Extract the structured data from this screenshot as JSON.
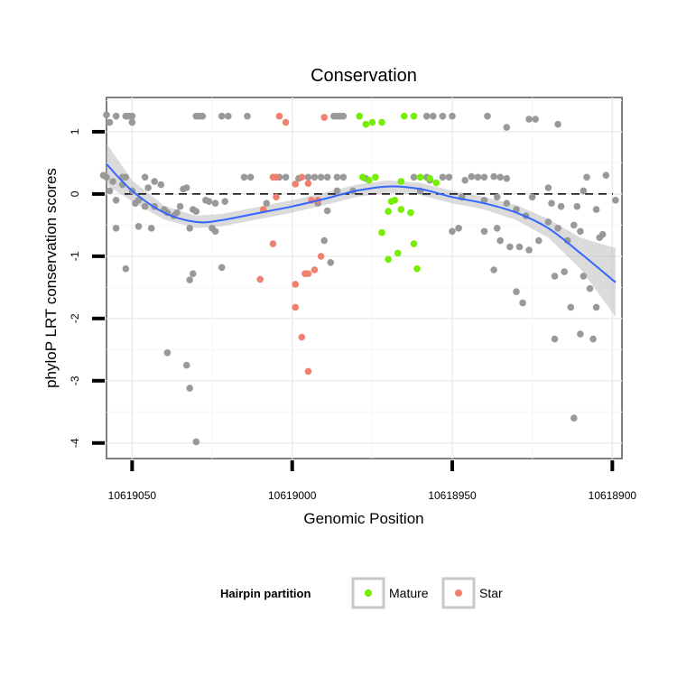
{
  "chart_data": {
    "type": "scatter",
    "title": "Conservation",
    "xlabel": "Genomic Position",
    "ylabel": "phyloP LRT conservation scores",
    "x_reversed": true,
    "xlim": [
      10619058,
      10618897
    ],
    "ylim": [
      -4.25,
      1.55
    ],
    "x_ticks": [
      10619050,
      10619000,
      10618950,
      10618900
    ],
    "x_tick_labels": [
      "10619050",
      "10619000",
      "10618950",
      "10618900"
    ],
    "y_ticks": [
      -4,
      -3,
      -2,
      -1,
      0,
      1
    ],
    "y_tick_labels": [
      "-4",
      "-3",
      "-2",
      "-1",
      "0",
      "1"
    ],
    "grid": true,
    "reference_line": {
      "y": 0,
      "style": "dashed",
      "color": "#000000"
    },
    "legend": {
      "title": "Hairpin partition",
      "placement": "bottom",
      "entries": [
        {
          "label": "Mature",
          "color": "#76EE00"
        },
        {
          "label": "Star",
          "color": "#F08070"
        }
      ]
    },
    "colors": {
      "other": "#999999",
      "mature": "#76EE00",
      "star": "#F08070",
      "smooth_line": "#3366FF",
      "ribbon": "#BEBEBE"
    },
    "series": [
      {
        "name": "",
        "group": "other",
        "points": [
          [
            10619058,
            1.27
          ],
          [
            10619055,
            1.25
          ],
          [
            10619052,
            1.25
          ],
          [
            10619051,
            1.25
          ],
          [
            10619050,
            1.25
          ],
          [
            10619057,
            1.15
          ],
          [
            10619050,
            1.15
          ],
          [
            10619058,
            0.27
          ],
          [
            10619053,
            0.27
          ],
          [
            10619052,
            0.27
          ],
          [
            10619059,
            0.3
          ],
          [
            10619057,
            0.05
          ],
          [
            10619055,
            -0.1
          ],
          [
            10619050,
            0.05
          ],
          [
            10619056,
            0.2
          ],
          [
            10619053,
            0.15
          ],
          [
            10619049,
            -0.15
          ],
          [
            10619046,
            0.27
          ],
          [
            10619048,
            -0.1
          ],
          [
            10619045,
            0.1
          ],
          [
            10619043,
            0.2
          ],
          [
            10619041,
            0.15
          ],
          [
            10619043,
            -0.2
          ],
          [
            10619046,
            -0.2
          ],
          [
            10619040,
            -0.25
          ],
          [
            10619039,
            -0.3
          ],
          [
            10619037,
            -0.35
          ],
          [
            10619036,
            -0.3
          ],
          [
            10619035,
            -0.2
          ],
          [
            10619034,
            0.08
          ],
          [
            10619033,
            0.1
          ],
          [
            10619031,
            -0.25
          ],
          [
            10619030,
            -0.28
          ],
          [
            10619027,
            -0.1
          ],
          [
            10619026,
            -0.12
          ],
          [
            10619024,
            -0.15
          ],
          [
            10619021,
            -0.12
          ],
          [
            10619055,
            -0.55
          ],
          [
            10619048,
            -0.52
          ],
          [
            10619044,
            -0.55
          ],
          [
            10619052,
            -1.2
          ],
          [
            10619032,
            -0.55
          ],
          [
            10619025,
            -0.55
          ],
          [
            10619024,
            -0.6
          ],
          [
            10619031,
            -1.28
          ],
          [
            10619032,
            -1.38
          ],
          [
            10619022,
            -1.18
          ],
          [
            10619039,
            -2.55
          ],
          [
            10619033,
            -2.75
          ],
          [
            10619032,
            -3.12
          ],
          [
            10619030,
            -3.98
          ],
          [
            10619030,
            1.25
          ],
          [
            10619029,
            1.25
          ],
          [
            10619028,
            1.25
          ],
          [
            10619022,
            1.25
          ],
          [
            10619020,
            1.25
          ],
          [
            10619014,
            1.25
          ],
          [
            10619015,
            0.27
          ],
          [
            10619013,
            0.27
          ],
          [
            10619008,
            -0.15
          ],
          [
            10619005,
            0.27
          ],
          [
            10619004,
            0.27
          ],
          [
            10619002,
            0.27
          ],
          [
            10618998,
            0.25
          ],
          [
            10618995,
            0.27
          ],
          [
            10618993,
            0.27
          ],
          [
            10618991,
            0.27
          ],
          [
            10618989,
            0.27
          ],
          [
            10618986,
            0.27
          ],
          [
            10618984,
            0.27
          ],
          [
            10618986,
            0.05
          ],
          [
            10618992,
            -0.15
          ],
          [
            10618989,
            -0.27
          ],
          [
            10618988,
            -1.1
          ],
          [
            10618990,
            -0.75
          ],
          [
            10618987,
            1.25
          ],
          [
            10618986,
            1.25
          ],
          [
            10618985,
            1.25
          ],
          [
            10618984,
            1.25
          ],
          [
            10618977,
            0.25
          ],
          [
            10618981,
            0.05
          ],
          [
            10618962,
            0.27
          ],
          [
            10618960,
            0.05
          ],
          [
            10618958,
            0.27
          ],
          [
            10618957,
            0.22
          ],
          [
            10618953,
            0.27
          ],
          [
            10618951,
            0.27
          ],
          [
            10618947,
            -0.05
          ],
          [
            10618946,
            0.22
          ],
          [
            10618944,
            0.28
          ],
          [
            10618942,
            0.27
          ],
          [
            10618940,
            0.27
          ],
          [
            10618937,
            0.28
          ],
          [
            10618935,
            0.27
          ],
          [
            10618933,
            0.25
          ],
          [
            10618940,
            -0.1
          ],
          [
            10618936,
            -0.05
          ],
          [
            10618933,
            -0.15
          ],
          [
            10618930,
            -0.25
          ],
          [
            10618927,
            -0.35
          ],
          [
            10618925,
            -0.05
          ],
          [
            10618919,
            -0.15
          ],
          [
            10618916,
            -0.2
          ],
          [
            10618911,
            -0.2
          ],
          [
            10618905,
            -0.25
          ],
          [
            10618950,
            -0.6
          ],
          [
            10618948,
            -0.55
          ],
          [
            10618940,
            -0.6
          ],
          [
            10618936,
            -0.55
          ],
          [
            10618935,
            -0.75
          ],
          [
            10618932,
            -0.85
          ],
          [
            10618929,
            -0.85
          ],
          [
            10618926,
            -0.9
          ],
          [
            10618923,
            -0.75
          ],
          [
            10618920,
            -0.45
          ],
          [
            10618917,
            -0.55
          ],
          [
            10618914,
            -0.75
          ],
          [
            10618912,
            -0.5
          ],
          [
            10618910,
            -0.6
          ],
          [
            10618904,
            -0.7
          ],
          [
            10618903,
            -0.65
          ],
          [
            10618937,
            -1.22
          ],
          [
            10618930,
            -1.57
          ],
          [
            10618928,
            -1.75
          ],
          [
            10618918,
            -1.32
          ],
          [
            10618915,
            -1.25
          ],
          [
            10618913,
            -1.82
          ],
          [
            10618907,
            -1.52
          ],
          [
            10618905,
            -1.82
          ],
          [
            10618909,
            -1.32
          ],
          [
            10618918,
            -2.33
          ],
          [
            10618910,
            -2.25
          ],
          [
            10618906,
            -2.33
          ],
          [
            10618912,
            -3.6
          ],
          [
            10618958,
            1.25
          ],
          [
            10618956,
            1.25
          ],
          [
            10618953,
            1.25
          ],
          [
            10618950,
            1.25
          ],
          [
            10618939,
            1.25
          ],
          [
            10618933,
            1.07
          ],
          [
            10618926,
            1.2
          ],
          [
            10618924,
            1.2
          ],
          [
            10618917,
            1.12
          ],
          [
            10618920,
            0.1
          ],
          [
            10618909,
            0.05
          ],
          [
            10618908,
            0.27
          ],
          [
            10618902,
            0.3
          ],
          [
            10618899,
            -0.1
          ]
        ]
      },
      {
        "name": "Mature",
        "group": "mature",
        "points": [
          [
            10618979,
            1.25
          ],
          [
            10618977,
            1.12
          ],
          [
            10618975,
            1.15
          ],
          [
            10618972,
            1.15
          ],
          [
            10618965,
            1.25
          ],
          [
            10618962,
            1.25
          ],
          [
            10618978,
            0.27
          ],
          [
            10618976,
            0.22
          ],
          [
            10618974,
            0.27
          ],
          [
            10618966,
            0.2
          ],
          [
            10618960,
            0.27
          ],
          [
            10618957,
            0.25
          ],
          [
            10618955,
            0.18
          ],
          [
            10618968,
            -0.1
          ],
          [
            10618969,
            -0.12
          ],
          [
            10618970,
            -0.28
          ],
          [
            10618966,
            -0.25
          ],
          [
            10618963,
            -0.3
          ],
          [
            10618972,
            -0.62
          ],
          [
            10618970,
            -1.05
          ],
          [
            10618967,
            -0.95
          ],
          [
            10618962,
            -0.8
          ],
          [
            10618961,
            -1.2
          ]
        ]
      },
      {
        "name": "Star",
        "group": "star",
        "points": [
          [
            10619004,
            1.25
          ],
          [
            10619002,
            1.15
          ],
          [
            10618990,
            1.23
          ],
          [
            10619006,
            0.27
          ],
          [
            10619005,
            0.27
          ],
          [
            10618999,
            0.16
          ],
          [
            10618997,
            0.27
          ],
          [
            10618995,
            0.17
          ],
          [
            10618994,
            -0.1
          ],
          [
            10618992,
            -0.1
          ],
          [
            10619005,
            -0.05
          ],
          [
            10619009,
            -0.25
          ],
          [
            10619006,
            -0.8
          ],
          [
            10619010,
            -1.37
          ],
          [
            10618999,
            -1.45
          ],
          [
            10618996,
            -1.28
          ],
          [
            10618995,
            -1.28
          ],
          [
            10618993,
            -1.22
          ],
          [
            10618991,
            -1.0
          ],
          [
            10618999,
            -1.82
          ],
          [
            10618997,
            -2.3
          ],
          [
            10618995,
            -2.85
          ]
        ]
      }
    ],
    "smooth": {
      "x": [
        10619058,
        10619050,
        10619040,
        10619030,
        10619022,
        10619010,
        10619000,
        10618990,
        10618980,
        10618970,
        10618960,
        10618950,
        10618940,
        10618930,
        10618920,
        10618910,
        10618899
      ],
      "y": [
        0.48,
        0.05,
        -0.3,
        -0.45,
        -0.42,
        -0.3,
        -0.2,
        -0.08,
        0.05,
        0.12,
        0.08,
        -0.05,
        -0.15,
        -0.3,
        -0.55,
        -0.95,
        -1.42
      ],
      "ribbon_halfwidth": [
        0.33,
        0.17,
        0.11,
        0.1,
        0.1,
        0.1,
        0.1,
        0.1,
        0.1,
        0.1,
        0.1,
        0.1,
        0.1,
        0.12,
        0.15,
        0.25,
        0.55
      ]
    }
  }
}
